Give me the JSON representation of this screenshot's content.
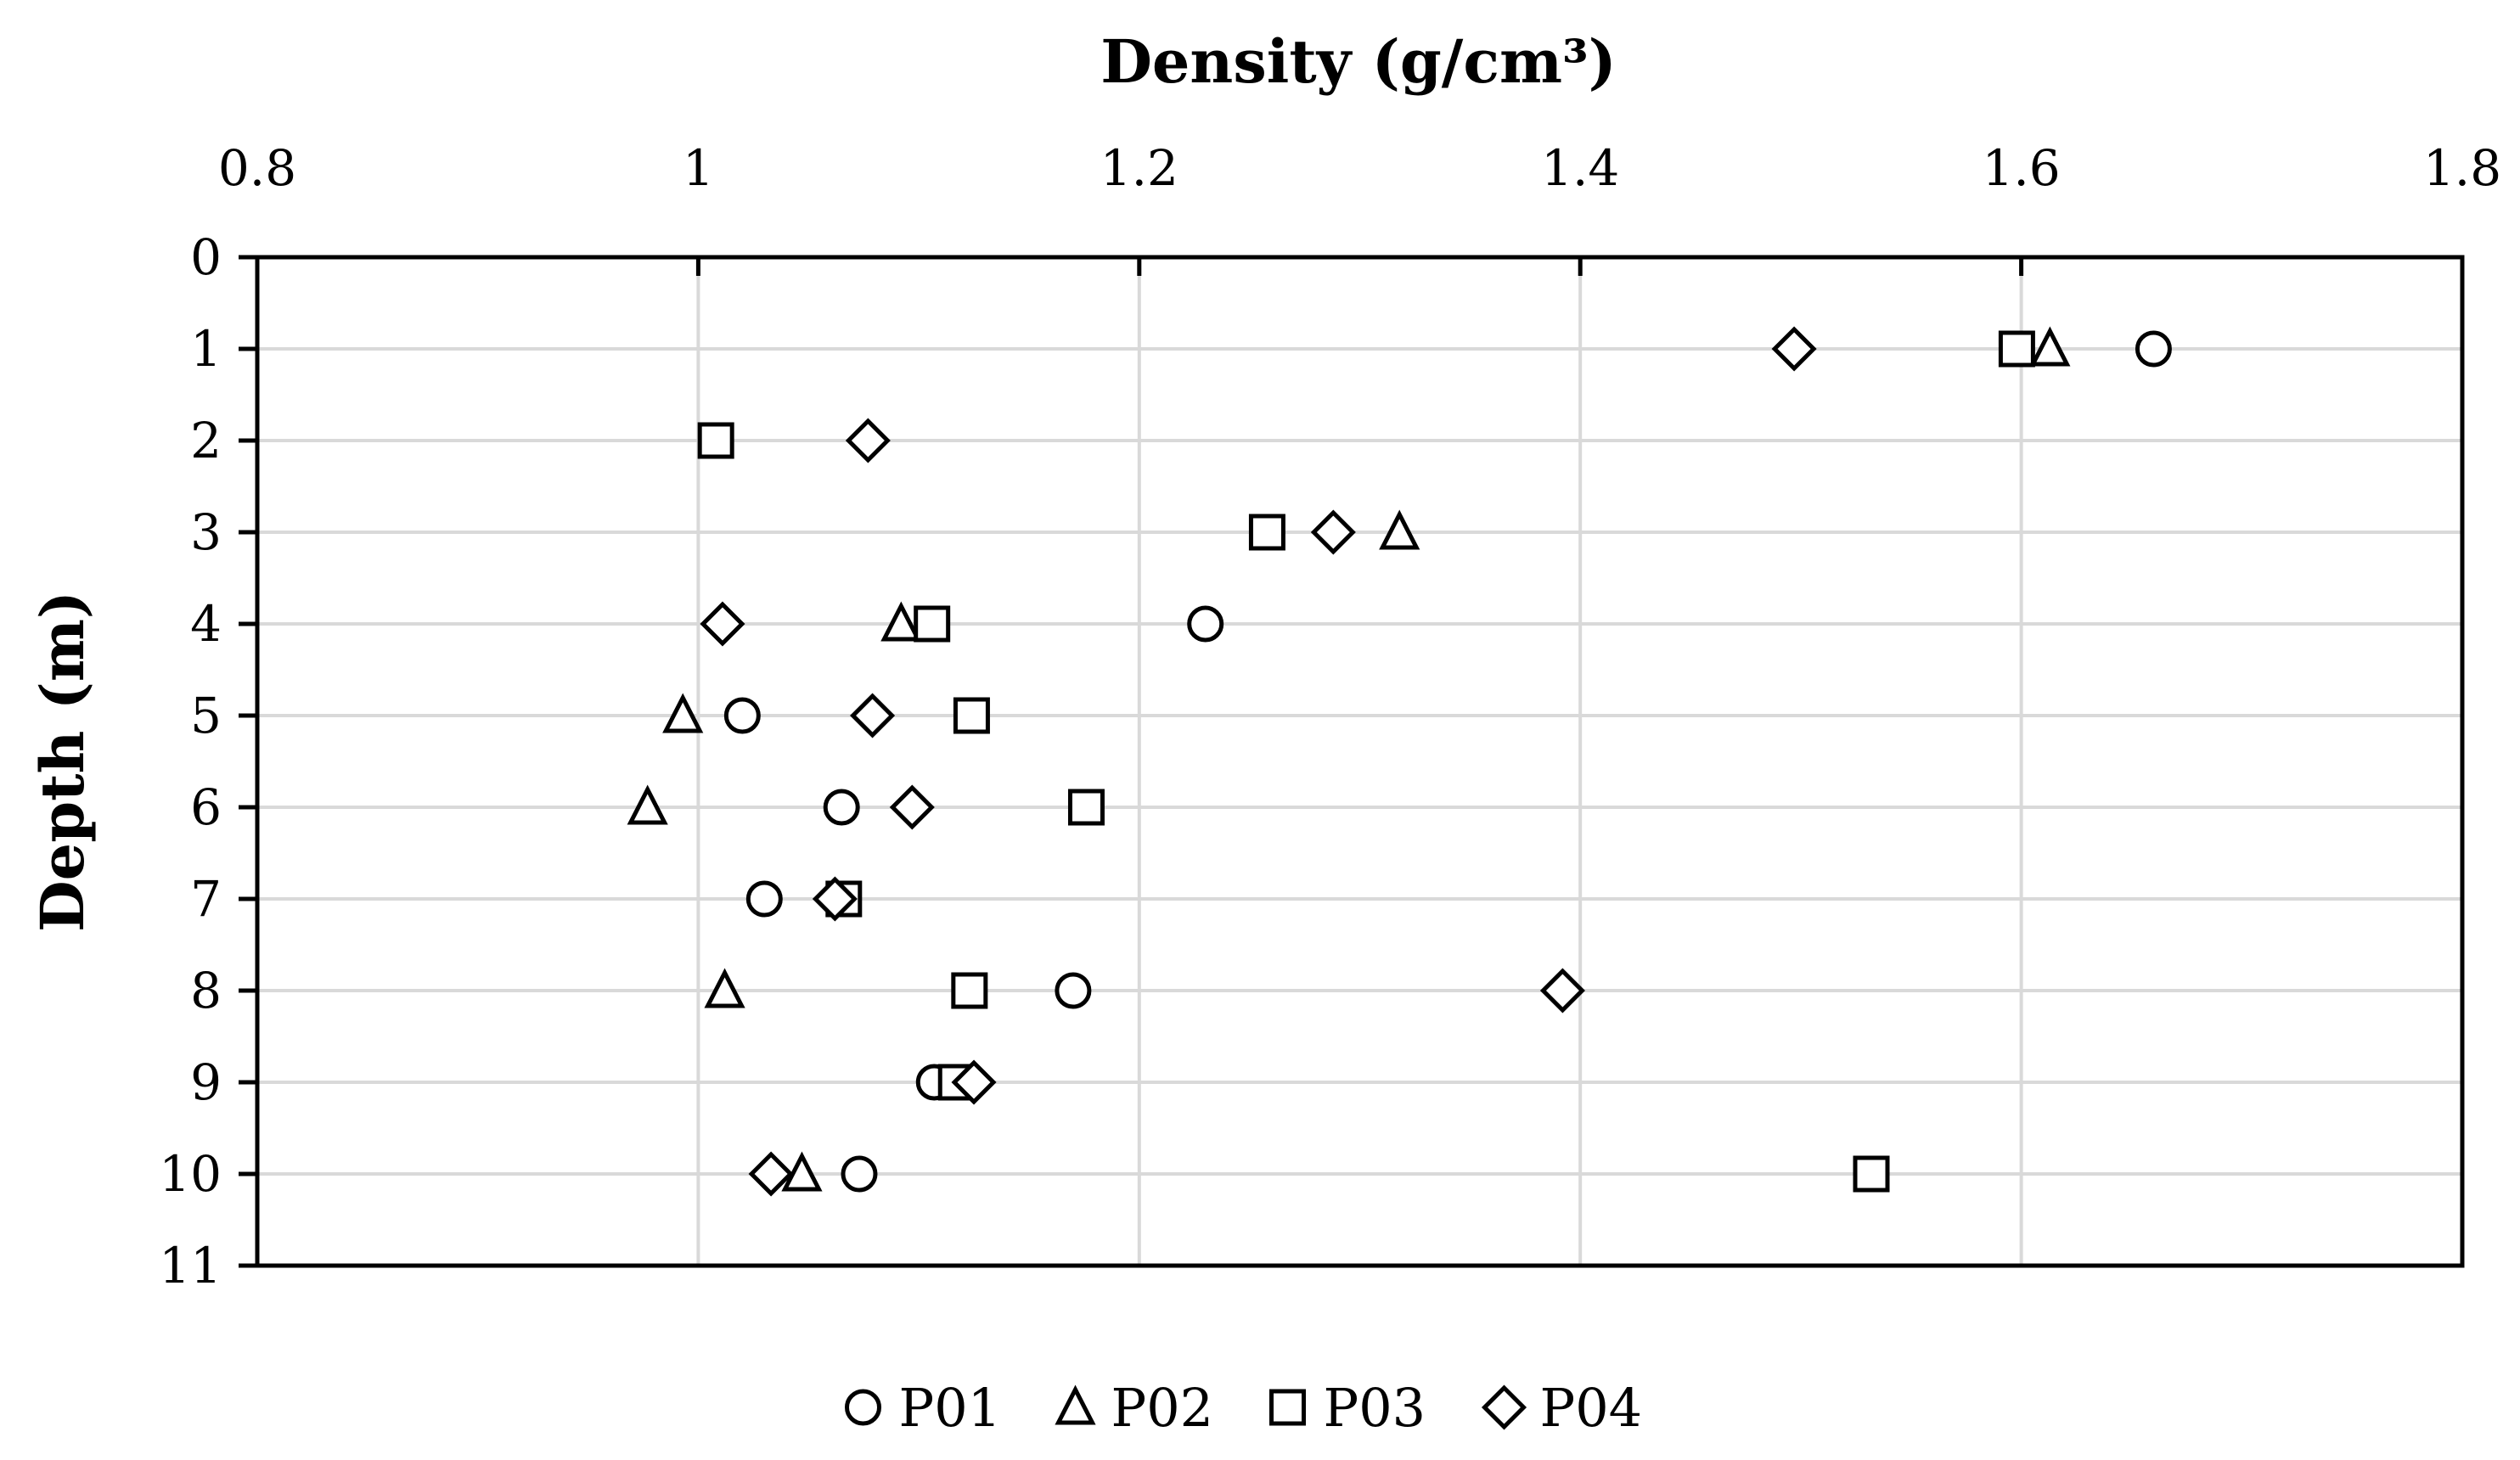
{
  "chart_data": {
    "type": "scatter",
    "title": "",
    "xlabel": "Density (g/cm³)",
    "ylabel": "Depth (m)",
    "xlim": [
      0.8,
      1.8
    ],
    "ylim": [
      0,
      11
    ],
    "x_axis_position": "top",
    "y_axis_inverted": true,
    "x_ticks": [
      0.8,
      1,
      1.2,
      1.4,
      1.6,
      1.8
    ],
    "x_tick_labels": [
      "0.8",
      "1",
      "1.2",
      "1.4",
      "1.6",
      "1.8"
    ],
    "y_ticks": [
      0,
      1,
      2,
      3,
      4,
      5,
      6,
      7,
      8,
      9,
      10,
      11
    ],
    "y_tick_labels": [
      "0",
      "1",
      "2",
      "3",
      "4",
      "5",
      "6",
      "7",
      "8",
      "9",
      "10",
      "11"
    ],
    "grid": true,
    "legend_position": "bottom-center",
    "series": [
      {
        "name": "P01",
        "marker": "circle",
        "points": [
          {
            "x": 1.66,
            "y": 1
          },
          {
            "x": 1.23,
            "y": 4
          },
          {
            "x": 1.02,
            "y": 5
          },
          {
            "x": 1.065,
            "y": 6
          },
          {
            "x": 1.03,
            "y": 7
          },
          {
            "x": 1.17,
            "y": 8
          },
          {
            "x": 1.107,
            "y": 9
          },
          {
            "x": 1.073,
            "y": 10
          }
        ]
      },
      {
        "name": "P02",
        "marker": "triangle",
        "points": [
          {
            "x": 1.613,
            "y": 1
          },
          {
            "x": 1.318,
            "y": 3
          },
          {
            "x": 1.092,
            "y": 4
          },
          {
            "x": 0.993,
            "y": 5
          },
          {
            "x": 0.977,
            "y": 6
          },
          {
            "x": 1.012,
            "y": 8
          },
          {
            "x": 1.047,
            "y": 10
          }
        ]
      },
      {
        "name": "P03",
        "marker": "square",
        "points": [
          {
            "x": 1.598,
            "y": 1
          },
          {
            "x": 1.008,
            "y": 2
          },
          {
            "x": 1.258,
            "y": 3
          },
          {
            "x": 1.106,
            "y": 4
          },
          {
            "x": 1.124,
            "y": 5
          },
          {
            "x": 1.176,
            "y": 6
          },
          {
            "x": 1.066,
            "y": 7
          },
          {
            "x": 1.123,
            "y": 8
          },
          {
            "x": 1.117,
            "y": 9
          },
          {
            "x": 1.532,
            "y": 10
          }
        ]
      },
      {
        "name": "P04",
        "marker": "diamond",
        "points": [
          {
            "x": 1.497,
            "y": 1
          },
          {
            "x": 1.077,
            "y": 2
          },
          {
            "x": 1.288,
            "y": 3
          },
          {
            "x": 1.011,
            "y": 4
          },
          {
            "x": 1.079,
            "y": 5
          },
          {
            "x": 1.097,
            "y": 6
          },
          {
            "x": 1.062,
            "y": 7
          },
          {
            "x": 1.392,
            "y": 8
          },
          {
            "x": 1.125,
            "y": 9
          },
          {
            "x": 1.033,
            "y": 10
          }
        ]
      }
    ]
  }
}
